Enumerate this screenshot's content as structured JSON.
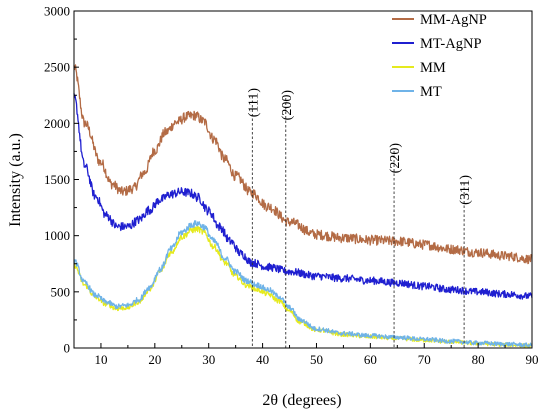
{
  "chart_data": {
    "type": "line",
    "title": "",
    "xlabel": "2θ (degrees)",
    "ylabel": "Intensity (a.u.)",
    "xlim": [
      5,
      90
    ],
    "ylim": [
      0,
      3000
    ],
    "xticks": [
      10,
      20,
      30,
      40,
      50,
      60,
      70,
      80,
      90
    ],
    "yticks": [
      0,
      500,
      1000,
      1500,
      2000,
      2500,
      3000
    ],
    "grid": false,
    "legend_position": "top-right",
    "series": [
      {
        "name": "MM-AgNP",
        "color": "#b36b45",
        "x": [
          5,
          7,
          10,
          12,
          14,
          16,
          18,
          20,
          22,
          24,
          26,
          27.5,
          29,
          31,
          33,
          35,
          38,
          41,
          45,
          50,
          55,
          60,
          65,
          70,
          75,
          80,
          85,
          90
        ],
        "y": [
          2500,
          2000,
          1650,
          1460,
          1390,
          1420,
          1560,
          1760,
          1920,
          2010,
          2060,
          2070,
          2020,
          1860,
          1680,
          1530,
          1380,
          1260,
          1120,
          1010,
          980,
          960,
          950,
          920,
          880,
          850,
          820,
          790
        ]
      },
      {
        "name": "MT-AgNP",
        "color": "#1f1fd0",
        "x": [
          5,
          7,
          9,
          11,
          13,
          15,
          17,
          19,
          21,
          23,
          25,
          26.5,
          28,
          30,
          32,
          34,
          36,
          38,
          41,
          45,
          50,
          55,
          60,
          65,
          70,
          75,
          80,
          85,
          90
        ],
        "y": [
          2230,
          1620,
          1350,
          1180,
          1080,
          1080,
          1140,
          1230,
          1320,
          1370,
          1390,
          1380,
          1340,
          1220,
          1080,
          950,
          840,
          760,
          720,
          680,
          640,
          620,
          600,
          580,
          550,
          520,
          500,
          480,
          460
        ]
      },
      {
        "name": "MM",
        "color": "#e5ea1e",
        "x": [
          5,
          7,
          9,
          11,
          13,
          15,
          17,
          19,
          21,
          23,
          25,
          27,
          28,
          29,
          31,
          33,
          35,
          37,
          39,
          41,
          43,
          45,
          47,
          50,
          55,
          60,
          65,
          70,
          75,
          80,
          85,
          90
        ],
        "y": [
          740,
          560,
          450,
          390,
          350,
          360,
          410,
          520,
          680,
          850,
          990,
          1050,
          1060,
          1030,
          900,
          760,
          640,
          560,
          520,
          480,
          420,
          330,
          230,
          160,
          120,
          100,
          85,
          70,
          55,
          40,
          30,
          20
        ]
      },
      {
        "name": "MT",
        "color": "#6fb3e8",
        "x": [
          5,
          7,
          9,
          11,
          13,
          15,
          17,
          19,
          21,
          23,
          25,
          27,
          28,
          29,
          31,
          33,
          35,
          37,
          39,
          41,
          43,
          45,
          47,
          50,
          55,
          60,
          65,
          70,
          75,
          80,
          85,
          90
        ],
        "y": [
          780,
          580,
          470,
          410,
          370,
          380,
          430,
          540,
          700,
          880,
          1030,
          1100,
          1110,
          1080,
          950,
          800,
          680,
          600,
          560,
          520,
          460,
          360,
          250,
          170,
          130,
          110,
          95,
          78,
          60,
          45,
          35,
          25
        ]
      }
    ],
    "reference_lines": [
      {
        "label": "(111)",
        "x": 38.1
      },
      {
        "label": "(200)",
        "x": 44.3
      },
      {
        "label": "(220)",
        "x": 64.4
      },
      {
        "label": "(311)",
        "x": 77.4
      }
    ]
  }
}
